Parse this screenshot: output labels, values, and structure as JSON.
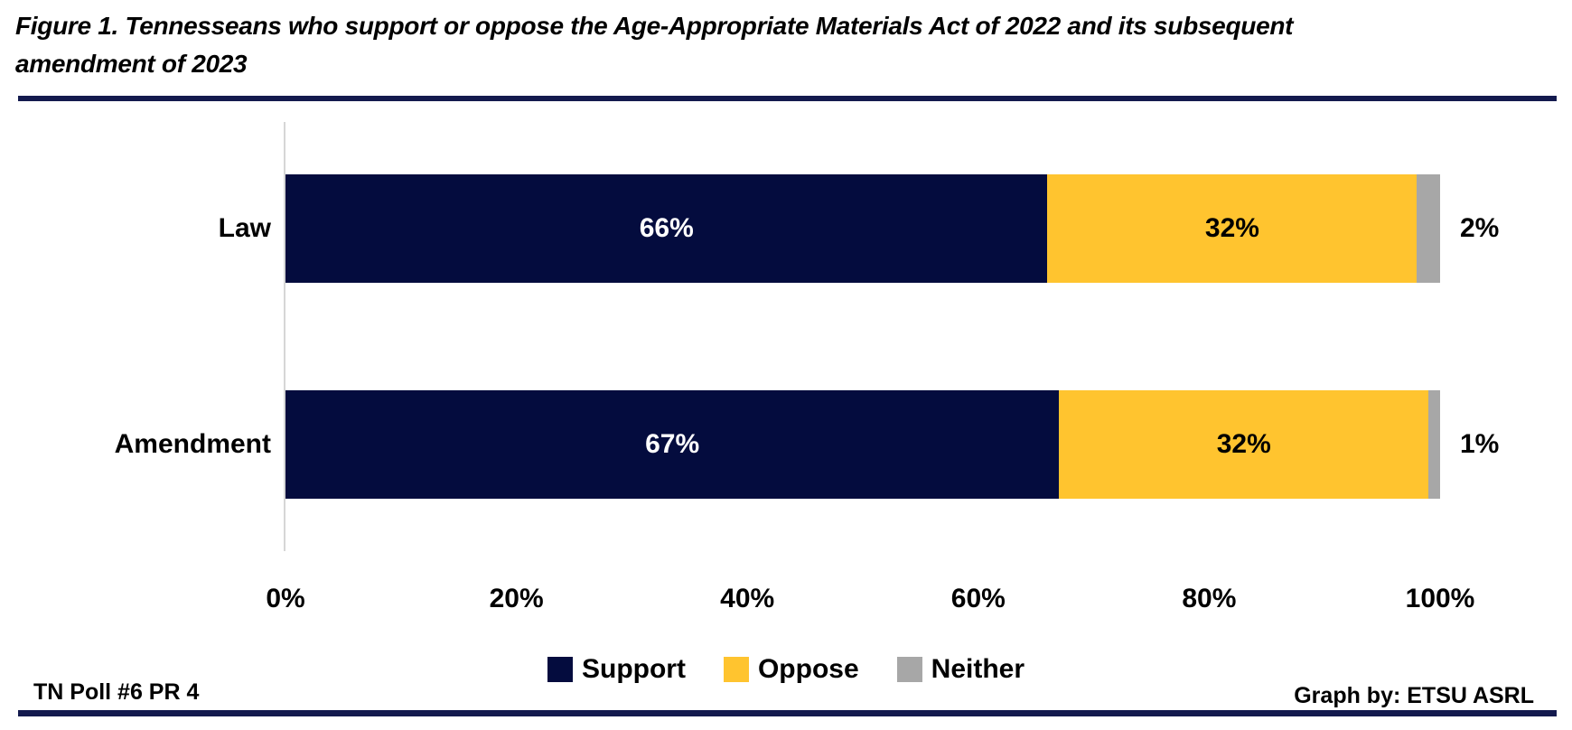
{
  "title": "Figure 1. Tennesseans who support or oppose the Age-Appropriate Materials Act of 2022 and its subsequent amendment of 2023",
  "footer": {
    "left": "TN Poll #6 PR 4",
    "right": "Graph by: ETSU ASRL"
  },
  "colors": {
    "support": "#040C3E",
    "oppose": "#FFC42F",
    "neither": "#A7A7A7",
    "divider": "#131A4E",
    "axis_line": "#D6D6D6",
    "inside_label_on_support": "#FFFFFF",
    "inside_label_on_oppose": "#000000"
  },
  "chart_data": {
    "type": "bar",
    "orientation": "horizontal",
    "stacked": true,
    "title": "Figure 1. Tennesseans who support or oppose the Age-Appropriate Materials Act of 2022 and its subsequent amendment of 2023",
    "categories": [
      "Law",
      "Amendment"
    ],
    "series": [
      {
        "name": "Support",
        "color": "#040C3E",
        "label_color": "#FFFFFF",
        "values": [
          66,
          67
        ]
      },
      {
        "name": "Oppose",
        "color": "#FFC42F",
        "label_color": "#000000",
        "values": [
          32,
          32
        ]
      },
      {
        "name": "Neither",
        "color": "#A7A7A7",
        "label_color": "#000000",
        "values": [
          2,
          1
        ]
      }
    ],
    "data_labels": {
      "Law": [
        "66%",
        "32%",
        "2%"
      ],
      "Amendment": [
        "67%",
        "32%",
        "1%"
      ]
    },
    "x_ticks": [
      "0%",
      "20%",
      "40%",
      "60%",
      "80%",
      "100%"
    ],
    "xlim": [
      0,
      100
    ],
    "grid": false,
    "legend": [
      "Support",
      "Oppose",
      "Neither"
    ],
    "legend_position": "bottom"
  }
}
